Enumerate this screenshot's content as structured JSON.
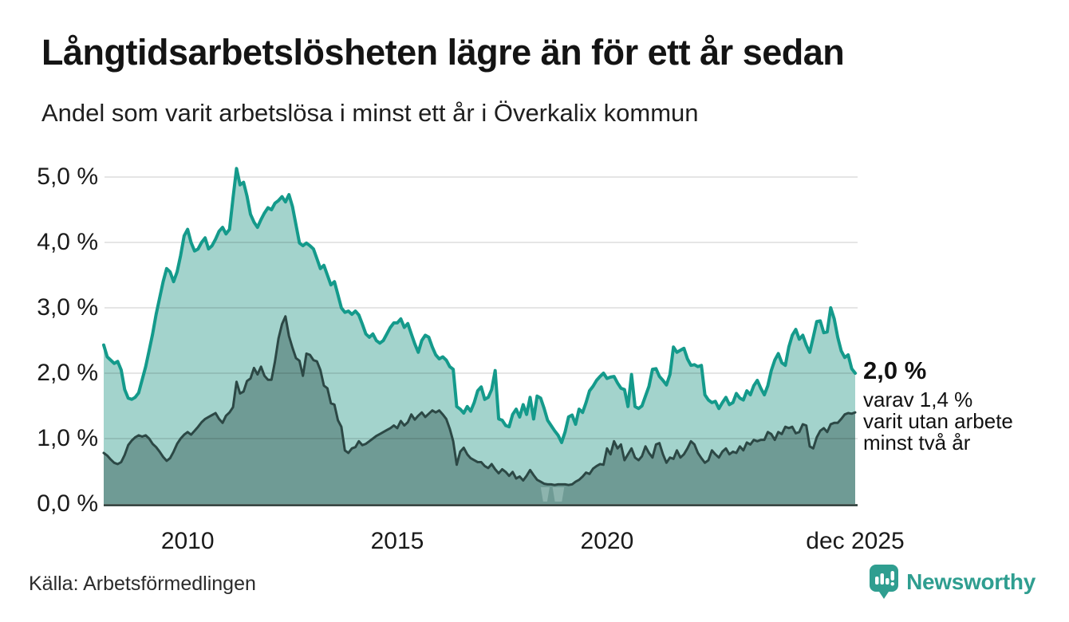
{
  "header": {
    "title": "Långtidsarbetslösheten lägre än för ett år sedan",
    "subtitle": "Andel som varit arbetslösa i minst ett år i Överkalix kommun"
  },
  "annotation": {
    "value_label": "2,0 %",
    "line1": "varav 1,4 %",
    "line2": "varit utan arbete",
    "line3": "minst två år"
  },
  "footer": {
    "source": "Källa: Arbetsförmedlingen",
    "logo_text": "Newsworthy",
    "logo_color": "#2f9e90"
  },
  "chart_data": {
    "type": "area",
    "title": "Långtidsarbetslösheten lägre än för ett år sedan",
    "subtitle": "Andel som varit arbetslösa i minst ett år i Överkalix kommun",
    "x_start": "2008-01",
    "x_end": "2025-12",
    "x_frequency": "monthly",
    "x_tick_labels": [
      "2010",
      "2015",
      "2020",
      "dec 2025"
    ],
    "x_tick_years": [
      2010,
      2015,
      2020,
      2025.917
    ],
    "y_tick_labels": [
      "5,0 %",
      "4,0 %",
      "3,0 %",
      "2,0 %",
      "1,0 %",
      "0,0 %"
    ],
    "y_ticks": [
      5,
      4,
      3,
      2,
      1,
      0
    ],
    "ylim": [
      0,
      5.35
    ],
    "grid": true,
    "grid_color": "rgba(0,0,0,0.10)",
    "axis_color": "#22332f",
    "gap_marker_color": "#8db4ae",
    "end_values": {
      "minst_ett_ar": "2,0 %",
      "minst_tva_ar": "1,4 %"
    },
    "series": [
      {
        "name": "Andel arbetslösa minst ett år",
        "color": "#149a8b",
        "fill": "#a3d3cc",
        "line_width": 4,
        "values": [
          2.43,
          2.25,
          2.2,
          2.15,
          2.18,
          2.05,
          1.75,
          1.62,
          1.6,
          1.63,
          1.7,
          1.9,
          2.1,
          2.35,
          2.6,
          2.9,
          3.15,
          3.4,
          3.6,
          3.55,
          3.4,
          3.55,
          3.8,
          4.1,
          4.2,
          4.0,
          3.87,
          3.9,
          4.0,
          4.07,
          3.9,
          3.95,
          4.05,
          4.17,
          4.23,
          4.13,
          4.2,
          4.68,
          5.13,
          4.88,
          4.92,
          4.71,
          4.43,
          4.31,
          4.23,
          4.35,
          4.45,
          4.53,
          4.5,
          4.6,
          4.64,
          4.7,
          4.62,
          4.73,
          4.55,
          4.27,
          3.99,
          3.95,
          3.99,
          3.95,
          3.9,
          3.75,
          3.6,
          3.65,
          3.5,
          3.35,
          3.4,
          3.2,
          3.0,
          2.93,
          2.95,
          2.9,
          2.95,
          2.89,
          2.75,
          2.6,
          2.55,
          2.6,
          2.5,
          2.46,
          2.5,
          2.6,
          2.7,
          2.77,
          2.77,
          2.83,
          2.7,
          2.76,
          2.6,
          2.45,
          2.32,
          2.5,
          2.58,
          2.55,
          2.4,
          2.28,
          2.22,
          2.25,
          2.2,
          2.1,
          2.06,
          1.49,
          1.45,
          1.39,
          1.49,
          1.42,
          1.55,
          1.73,
          1.79,
          1.6,
          1.63,
          1.75,
          2.04,
          1.3,
          1.28,
          1.2,
          1.18,
          1.37,
          1.45,
          1.33,
          1.52,
          1.37,
          1.63,
          1.3,
          1.65,
          1.62,
          1.46,
          1.28,
          1.2,
          1.12,
          1.05,
          0.94,
          1.1,
          1.33,
          1.36,
          1.22,
          1.45,
          1.4,
          1.55,
          1.73,
          1.8,
          1.89,
          1.95,
          2.0,
          1.92,
          1.94,
          1.95,
          1.85,
          1.77,
          1.75,
          1.49,
          1.98,
          1.49,
          1.46,
          1.5,
          1.65,
          1.8,
          2.06,
          2.07,
          1.95,
          1.89,
          1.82,
          1.98,
          2.4,
          2.32,
          2.35,
          2.38,
          2.22,
          2.12,
          2.13,
          2.1,
          2.12,
          1.67,
          1.59,
          1.55,
          1.57,
          1.46,
          1.55,
          1.63,
          1.52,
          1.55,
          1.69,
          1.62,
          1.59,
          1.73,
          1.67,
          1.81,
          1.89,
          1.77,
          1.67,
          1.81,
          2.04,
          2.2,
          2.3,
          2.16,
          2.12,
          2.4,
          2.58,
          2.67,
          2.52,
          2.58,
          2.43,
          2.32,
          2.55,
          2.79,
          2.8,
          2.62,
          2.63,
          3.0,
          2.83,
          2.55,
          2.34,
          2.24,
          2.28,
          2.07,
          2.0
        ]
      },
      {
        "name": "Andel arbetslösa minst två år",
        "color": "#2c4845",
        "fill": "#6f9b95",
        "line_width": 3,
        "values": [
          0.78,
          0.74,
          0.68,
          0.63,
          0.61,
          0.64,
          0.75,
          0.9,
          0.97,
          1.02,
          1.05,
          1.03,
          1.05,
          1.0,
          0.92,
          0.87,
          0.8,
          0.72,
          0.66,
          0.7,
          0.8,
          0.92,
          1.0,
          1.06,
          1.1,
          1.06,
          1.12,
          1.18,
          1.25,
          1.3,
          1.33,
          1.36,
          1.39,
          1.3,
          1.24,
          1.35,
          1.4,
          1.48,
          1.87,
          1.69,
          1.72,
          1.88,
          1.92,
          2.08,
          1.98,
          2.1,
          1.96,
          1.9,
          1.9,
          2.18,
          2.53,
          2.75,
          2.87,
          2.57,
          2.39,
          2.23,
          2.19,
          1.96,
          2.3,
          2.28,
          2.2,
          2.18,
          2.05,
          1.81,
          1.77,
          1.54,
          1.52,
          1.28,
          1.18,
          0.82,
          0.78,
          0.85,
          0.87,
          0.96,
          0.9,
          0.92,
          0.96,
          1.0,
          1.04,
          1.07,
          1.1,
          1.13,
          1.16,
          1.2,
          1.16,
          1.27,
          1.2,
          1.25,
          1.37,
          1.29,
          1.35,
          1.4,
          1.33,
          1.38,
          1.43,
          1.4,
          1.43,
          1.37,
          1.3,
          1.15,
          0.96,
          0.6,
          0.8,
          0.86,
          0.76,
          0.7,
          0.67,
          0.64,
          0.64,
          0.58,
          0.55,
          0.61,
          0.53,
          0.47,
          0.53,
          0.49,
          0.43,
          0.49,
          0.39,
          0.42,
          0.36,
          0.43,
          0.52,
          0.44,
          0.37,
          0.34,
          0.31,
          0.3,
          0.3,
          0.29,
          0.3,
          0.3,
          0.3,
          0.29,
          0.3,
          0.34,
          0.37,
          0.42,
          0.48,
          0.46,
          0.54,
          0.58,
          0.61,
          0.6,
          0.85,
          0.76,
          0.96,
          0.85,
          0.91,
          0.67,
          0.76,
          0.85,
          0.71,
          0.67,
          0.73,
          0.88,
          0.78,
          0.71,
          0.91,
          0.93,
          0.76,
          0.63,
          0.71,
          0.69,
          0.82,
          0.71,
          0.76,
          0.85,
          0.96,
          0.91,
          0.78,
          0.7,
          0.63,
          0.67,
          0.82,
          0.76,
          0.71,
          0.8,
          0.85,
          0.76,
          0.8,
          0.78,
          0.88,
          0.82,
          0.94,
          0.91,
          0.98,
          0.96,
          0.98,
          0.98,
          1.1,
          1.07,
          0.98,
          1.1,
          1.07,
          1.18,
          1.16,
          1.18,
          1.08,
          1.1,
          1.22,
          1.2,
          0.88,
          0.85,
          1.02,
          1.12,
          1.16,
          1.1,
          1.22,
          1.24,
          1.24,
          1.3,
          1.37,
          1.39,
          1.38,
          1.4
        ]
      }
    ],
    "data_gaps_series2": [
      [
        2018.42,
        2018.63
      ],
      [
        2018.7,
        2018.98
      ]
    ]
  }
}
